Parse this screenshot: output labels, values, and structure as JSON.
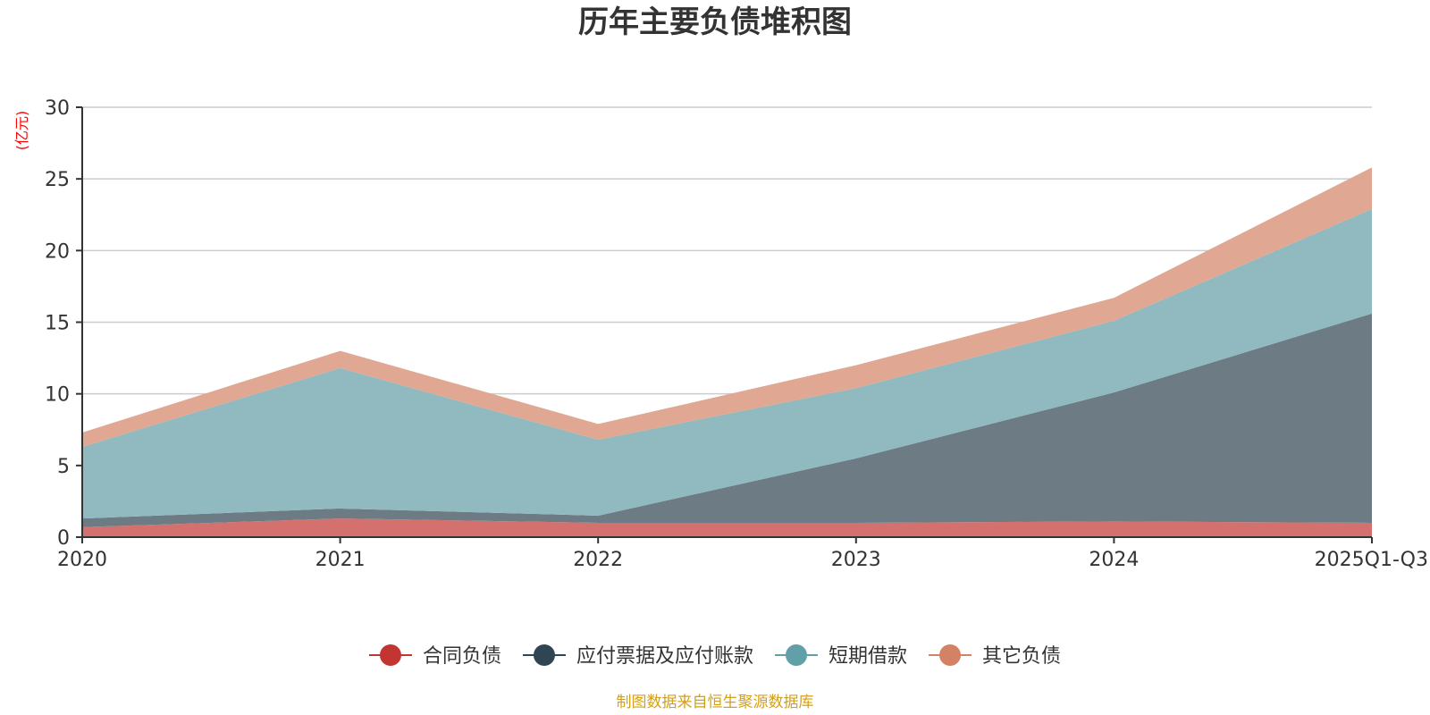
{
  "chart_data": {
    "type": "area",
    "stacked": true,
    "title": "历年主要负债堆积图",
    "unit_label": "(亿元)",
    "categories": [
      "2020",
      "2021",
      "2022",
      "2023",
      "2024",
      "2025Q1-Q3"
    ],
    "ylim": [
      0,
      30
    ],
    "yticks": [
      0,
      5,
      10,
      15,
      20,
      25,
      30
    ],
    "grid": true,
    "legend_position": "bottom-center",
    "series": [
      {
        "name": "合同负债",
        "values": [
          0.7,
          1.3,
          1.0,
          1.0,
          1.1,
          1.0
        ],
        "color": "#c23531",
        "fill": "#d4706d"
      },
      {
        "name": "应付票据及应付账款",
        "values": [
          0.6,
          0.7,
          0.5,
          4.5,
          9.0,
          14.6
        ],
        "color": "#2f4554",
        "fill": "#6d7b85"
      },
      {
        "name": "短期借款",
        "values": [
          5.0,
          9.8,
          5.3,
          4.9,
          5.0,
          7.3
        ],
        "color": "#61a0a8",
        "fill": "#90babf"
      },
      {
        "name": "其它负债",
        "values": [
          1.0,
          1.2,
          1.1,
          1.6,
          1.6,
          2.9
        ],
        "color": "#d48265",
        "fill": "#e0a792"
      }
    ]
  },
  "source_text": "制图数据来自恒生聚源数据库",
  "colors": {
    "unit_label": "#ff0000",
    "source_text": "#d4a017",
    "axis": "#333333",
    "grid": "#cccccc"
  }
}
